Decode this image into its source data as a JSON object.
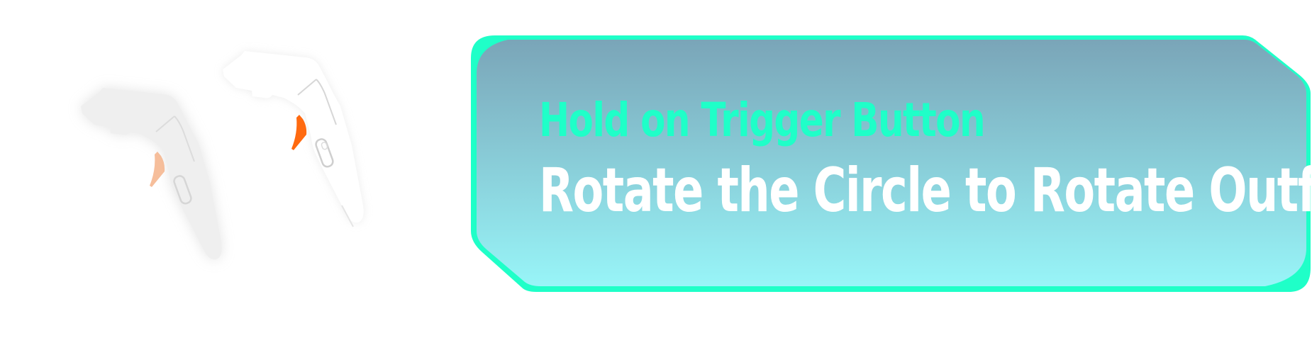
{
  "panel": {
    "hint_title": "Hold on Trigger Button",
    "instruction": "Rotate the Circle to Rotate Outfit"
  },
  "colors": {
    "accent": "#1fffc8",
    "panel_top": "#7aa5b8",
    "panel_bottom": "#98f5f8",
    "trigger_active": "#ff6a10",
    "trigger_ghost": "#f4b38a"
  },
  "icons": {
    "controller_ghost": "vr-controller-icon",
    "controller_active": "vr-controller-icon"
  }
}
